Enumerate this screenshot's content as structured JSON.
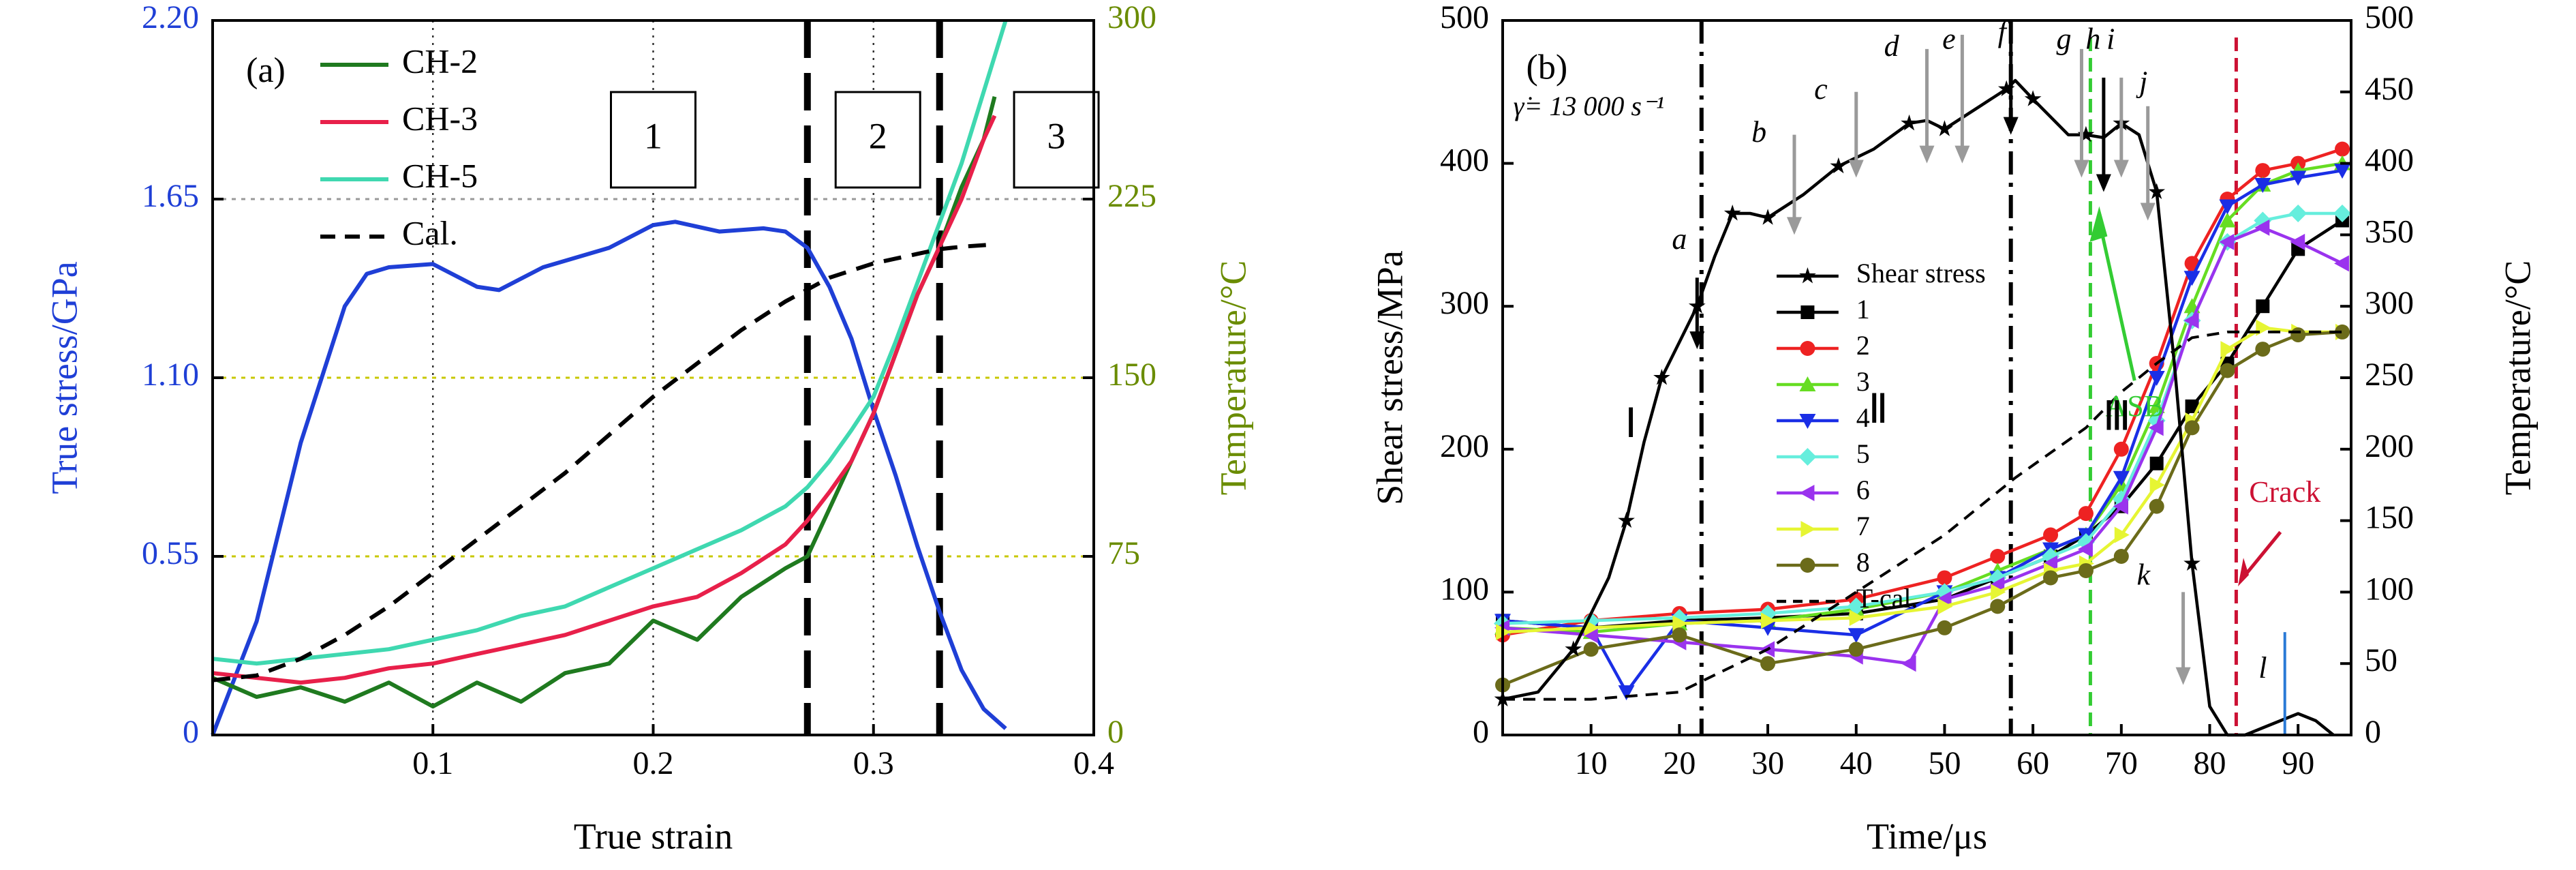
{
  "colors": {
    "stress_blue": "#1f3fd6",
    "temp_green": "#6a8c00",
    "ch2": "#1f7a1f",
    "ch3": "#e8204a",
    "ch5": "#3fd8b0",
    "cal": "#000000",
    "grid_yellow": "#c8c800",
    "asb": "#33cc33",
    "crack": "#cc1133",
    "arrow_gray": "#9a9a9a",
    "s1": "#000000",
    "s2": "#ee2222",
    "s3": "#66dd22",
    "s4": "#1a2ee6",
    "s5": "#66eedd",
    "s6": "#9a33ee",
    "s7": "#e6f533",
    "s8": "#6b6b1a"
  },
  "chart_data": [
    {
      "panel": "(a)",
      "type": "line",
      "xlabel": "True strain",
      "ylabel_left": "True stress/GPa",
      "ylabel_right": "Temperature/°C",
      "xlim": [
        0,
        0.4
      ],
      "ylim_left": [
        0,
        2.2
      ],
      "ylim_right": [
        0,
        300
      ],
      "x_ticks": [
        "0.1",
        "0.2",
        "0.3",
        "0.4"
      ],
      "y_left_ticks": [
        "0",
        "0.55",
        "1.10",
        "1.65",
        "2.20"
      ],
      "y_right_ticks": [
        "0",
        "75",
        "150",
        "225",
        "300"
      ],
      "region_labels": [
        "1",
        "2",
        "3"
      ],
      "stress_series": {
        "name": "True stress",
        "x": [
          0,
          0.02,
          0.04,
          0.06,
          0.07,
          0.08,
          0.1,
          0.12,
          0.13,
          0.15,
          0.18,
          0.2,
          0.21,
          0.23,
          0.25,
          0.26,
          0.27,
          0.28,
          0.29,
          0.3,
          0.31,
          0.32,
          0.33,
          0.34,
          0.35,
          0.36
        ],
        "values": [
          0,
          0.35,
          0.9,
          1.32,
          1.42,
          1.44,
          1.45,
          1.38,
          1.37,
          1.44,
          1.5,
          1.57,
          1.58,
          1.55,
          1.56,
          1.55,
          1.5,
          1.38,
          1.22,
          1.0,
          0.8,
          0.58,
          0.38,
          0.2,
          0.08,
          0.02
        ]
      },
      "temperature_series": [
        {
          "name": "CH-2",
          "x": [
            0,
            0.02,
            0.04,
            0.06,
            0.08,
            0.1,
            0.12,
            0.14,
            0.16,
            0.18,
            0.2,
            0.22,
            0.24,
            0.26,
            0.27,
            0.28,
            0.29,
            0.3,
            0.31,
            0.32,
            0.33,
            0.34,
            0.35,
            0.355
          ],
          "values": [
            24,
            16,
            20,
            14,
            22,
            12,
            22,
            14,
            26,
            30,
            48,
            40,
            58,
            70,
            75,
            95,
            115,
            135,
            160,
            185,
            205,
            230,
            250,
            268
          ]
        },
        {
          "name": "CH-3",
          "x": [
            0,
            0.02,
            0.04,
            0.06,
            0.08,
            0.1,
            0.12,
            0.14,
            0.16,
            0.18,
            0.2,
            0.22,
            0.24,
            0.26,
            0.27,
            0.28,
            0.29,
            0.3,
            0.31,
            0.32,
            0.33,
            0.34,
            0.35,
            0.355
          ],
          "values": [
            26,
            24,
            22,
            24,
            28,
            30,
            34,
            38,
            42,
            48,
            54,
            58,
            68,
            80,
            90,
            102,
            115,
            135,
            160,
            185,
            205,
            225,
            250,
            260
          ]
        },
        {
          "name": "CH-5",
          "x": [
            0,
            0.02,
            0.04,
            0.06,
            0.08,
            0.1,
            0.12,
            0.14,
            0.16,
            0.18,
            0.2,
            0.22,
            0.24,
            0.26,
            0.27,
            0.28,
            0.29,
            0.3,
            0.31,
            0.32,
            0.33,
            0.34,
            0.35,
            0.36
          ],
          "values": [
            32,
            30,
            32,
            34,
            36,
            40,
            44,
            50,
            54,
            62,
            70,
            78,
            86,
            96,
            104,
            115,
            128,
            142,
            165,
            190,
            215,
            240,
            270,
            300
          ]
        },
        {
          "name": "Cal.",
          "dashed": true,
          "x": [
            0,
            0.02,
            0.04,
            0.06,
            0.08,
            0.1,
            0.12,
            0.14,
            0.16,
            0.18,
            0.2,
            0.22,
            0.24,
            0.26,
            0.28,
            0.3,
            0.32,
            0.33,
            0.34,
            0.355
          ],
          "values": [
            23,
            25,
            32,
            42,
            54,
            68,
            82,
            96,
            110,
            126,
            142,
            156,
            170,
            182,
            192,
            198,
            202,
            204,
            205,
            206
          ]
        }
      ],
      "legend_position": "top-left"
    },
    {
      "panel": "(b)",
      "type": "line",
      "xlabel": "Time/μs",
      "ylabel_left": "Shear stress/MPa",
      "ylabel_right": "Temperature/°C",
      "xlim": [
        0,
        96
      ],
      "ylim_left": [
        0,
        500
      ],
      "ylim_right": [
        0,
        500
      ],
      "x_ticks": [
        "10",
        "20",
        "30",
        "40",
        "50",
        "60",
        "70",
        "80",
        "90"
      ],
      "y_left_ticks": [
        "0",
        "100",
        "200",
        "300",
        "400",
        "500"
      ],
      "y_right_ticks": [
        "0",
        "50",
        "100",
        "150",
        "200",
        "250",
        "300",
        "350",
        "400",
        "450",
        "500"
      ],
      "strain_rate_label": "γ̇= 13 000 s⁻¹",
      "stage_labels": [
        "Ⅰ",
        "Ⅱ",
        "Ⅲ"
      ],
      "point_labels": [
        "a",
        "b",
        "c",
        "d",
        "e",
        "f",
        "g",
        "h",
        "i",
        "j",
        "k",
        "l"
      ],
      "annotations": [
        "ASB",
        "Crack"
      ],
      "shear_stress": {
        "name": "Shear stress",
        "x": [
          0,
          4,
          8,
          12,
          14,
          16,
          18,
          20,
          22,
          24,
          26,
          28,
          30,
          34,
          38,
          42,
          46,
          48,
          50,
          54,
          57,
          58,
          60,
          64,
          66,
          68,
          70,
          72,
          74,
          76,
          78,
          80,
          82,
          84,
          86,
          88,
          90,
          92,
          94
        ],
        "values": [
          25,
          30,
          60,
          110,
          150,
          205,
          250,
          275,
          300,
          335,
          365,
          365,
          362,
          378,
          398,
          410,
          428,
          430,
          424,
          440,
          452,
          458,
          445,
          420,
          420,
          418,
          428,
          420,
          380,
          260,
          120,
          20,
          0,
          0,
          5,
          10,
          15,
          10,
          0
        ]
      },
      "temperature_series": [
        {
          "name": "1",
          "x": [
            0,
            10,
            20,
            30,
            40,
            50,
            56,
            62,
            66,
            70,
            74,
            78,
            82,
            86,
            90,
            95
          ],
          "values": [
            80,
            75,
            80,
            82,
            85,
            95,
            110,
            125,
            140,
            160,
            190,
            230,
            260,
            300,
            340,
            360
          ]
        },
        {
          "name": "2",
          "x": [
            0,
            10,
            20,
            30,
            40,
            50,
            56,
            62,
            66,
            70,
            74,
            78,
            82,
            86,
            90,
            95
          ],
          "values": [
            70,
            80,
            85,
            88,
            95,
            110,
            125,
            140,
            155,
            200,
            260,
            330,
            375,
            395,
            400,
            410
          ]
        },
        {
          "name": "3",
          "x": [
            0,
            10,
            20,
            30,
            40,
            50,
            56,
            62,
            66,
            70,
            74,
            78,
            82,
            86,
            90,
            95
          ],
          "values": [
            75,
            72,
            78,
            80,
            88,
            100,
            115,
            130,
            140,
            175,
            230,
            300,
            360,
            385,
            395,
            400
          ]
        },
        {
          "name": "4",
          "x": [
            0,
            10,
            14,
            20,
            30,
            40,
            50,
            56,
            62,
            66,
            70,
            74,
            78,
            82,
            86,
            90,
            95
          ],
          "values": [
            80,
            75,
            30,
            80,
            75,
            70,
            100,
            110,
            130,
            140,
            180,
            250,
            320,
            370,
            385,
            390,
            395
          ]
        },
        {
          "name": "5",
          "x": [
            0,
            10,
            20,
            30,
            40,
            50,
            56,
            62,
            66,
            70,
            74,
            78,
            82,
            86,
            90,
            95
          ],
          "values": [
            78,
            80,
            82,
            85,
            90,
            100,
            110,
            125,
            135,
            165,
            220,
            290,
            345,
            360,
            365,
            365
          ]
        },
        {
          "name": "6",
          "x": [
            0,
            10,
            20,
            30,
            40,
            46,
            50,
            56,
            62,
            66,
            70,
            74,
            78,
            82,
            86,
            90,
            95
          ],
          "values": [
            75,
            70,
            65,
            60,
            55,
            50,
            95,
            105,
            120,
            130,
            160,
            215,
            290,
            345,
            355,
            345,
            330
          ]
        },
        {
          "name": "7",
          "x": [
            0,
            10,
            20,
            30,
            40,
            50,
            56,
            62,
            66,
            70,
            74,
            78,
            82,
            86,
            90,
            95
          ],
          "values": [
            72,
            75,
            78,
            80,
            82,
            90,
            100,
            115,
            120,
            140,
            175,
            220,
            270,
            285,
            282,
            282
          ]
        },
        {
          "name": "8",
          "x": [
            0,
            10,
            20,
            30,
            40,
            50,
            56,
            62,
            66,
            70,
            74,
            78,
            82,
            86,
            90,
            95
          ],
          "values": [
            35,
            60,
            70,
            50,
            60,
            75,
            90,
            110,
            115,
            125,
            160,
            215,
            255,
            270,
            280,
            282
          ]
        },
        {
          "name": "T-cal.",
          "dashed": true,
          "x": [
            0,
            10,
            20,
            30,
            40,
            50,
            58,
            66,
            70,
            74,
            78,
            82,
            86,
            90,
            95
          ],
          "values": [
            25,
            25,
            30,
            60,
            100,
            140,
            180,
            215,
            240,
            260,
            278,
            282,
            282,
            282,
            282
          ]
        }
      ],
      "legend_position": "center-left"
    }
  ]
}
